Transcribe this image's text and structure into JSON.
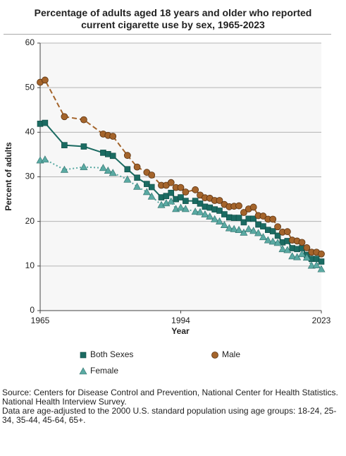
{
  "chart_data": {
    "type": "line",
    "title": "Percentage of adults aged 18 years and older who reported current cigarette use by sex, 1965-2023",
    "x_label": "Year",
    "y_label": "Percent of adults",
    "x": [
      1965,
      1966,
      1970,
      1974,
      1978,
      1979,
      1980,
      1983,
      1985,
      1987,
      1988,
      1990,
      1991,
      1992,
      1993,
      1994,
      1995,
      1997,
      1998,
      1999,
      2000,
      2001,
      2002,
      2003,
      2004,
      2005,
      2006,
      2007,
      2008,
      2009,
      2010,
      2011,
      2012,
      2013,
      2014,
      2015,
      2016,
      2017,
      2018,
      2019,
      2020,
      2021,
      2022,
      2023
    ],
    "series": [
      {
        "name": "Both Sexes",
        "color": "#1b6b62",
        "marker": "square",
        "dash": "solid",
        "values": [
          41.9,
          42.1,
          37.1,
          36.8,
          35.4,
          35.1,
          34.7,
          31.7,
          29.8,
          28.4,
          27.7,
          25.4,
          25.7,
          26.4,
          25.0,
          25.4,
          24.6,
          24.6,
          24.0,
          23.3,
          23.1,
          22.7,
          22.4,
          21.6,
          20.9,
          20.8,
          20.8,
          19.8,
          20.6,
          20.6,
          19.3,
          18.9,
          18.1,
          17.8,
          16.8,
          15.3,
          15.6,
          14.0,
          13.8,
          14.0,
          12.5,
          11.6,
          11.6,
          11.0
        ]
      },
      {
        "name": "Male",
        "color": "#a4642b",
        "marker": "circle",
        "dash": "dashed",
        "values": [
          51.2,
          51.7,
          43.5,
          42.8,
          39.6,
          39.3,
          39.1,
          34.8,
          32.2,
          31.0,
          30.4,
          28.1,
          28.1,
          28.7,
          27.6,
          27.6,
          26.6,
          27.1,
          25.9,
          25.3,
          25.2,
          24.7,
          24.7,
          23.8,
          23.3,
          23.4,
          23.5,
          22.0,
          22.8,
          23.2,
          21.3,
          21.2,
          20.5,
          20.5,
          18.8,
          17.6,
          17.7,
          15.8,
          15.6,
          15.3,
          14.1,
          13.1,
          13.1,
          12.7
        ]
      },
      {
        "name": "Female",
        "color": "#5aaaa3",
        "marker": "triangle",
        "dash": "dotted",
        "values": [
          33.7,
          33.9,
          31.6,
          32.2,
          32.0,
          31.4,
          30.9,
          29.4,
          27.8,
          26.6,
          25.6,
          23.7,
          24.1,
          24.5,
          22.8,
          23.1,
          22.8,
          22.2,
          22.1,
          21.6,
          21.1,
          20.5,
          20.0,
          19.2,
          18.5,
          18.3,
          18.1,
          17.5,
          18.3,
          17.9,
          17.4,
          16.5,
          15.8,
          15.5,
          15.2,
          13.8,
          13.6,
          12.2,
          12.0,
          12.7,
          11.9,
          10.1,
          10.2,
          9.3
        ]
      }
    ],
    "xlim": [
      1965,
      2023
    ],
    "xticks": [
      1965,
      1994,
      2023
    ],
    "ylim": [
      0,
      60
    ],
    "yticks": [
      0,
      10,
      20,
      30,
      40,
      50,
      60
    ],
    "grid": true,
    "source": "Source: Centers for Disease Control and Prevention, National Center for Health Statistics. National Health Interview Survey.",
    "note": "Data are age-adjusted to the 2000 U.S. standard population using age groups: 18-24, 25-34, 35-44, 45-64, 65+."
  }
}
